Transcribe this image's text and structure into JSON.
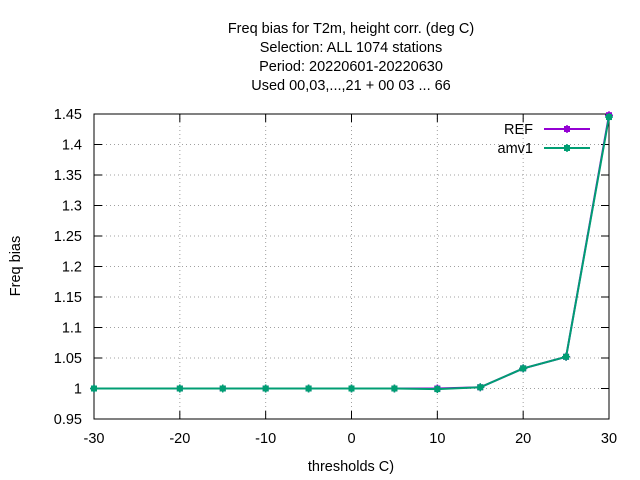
{
  "chart_data": {
    "type": "line",
    "title_lines": [
      "Freq bias  for T2m, height corr. (deg C)",
      "Selection: ALL   1074 stations",
      "Period: 20220601-20220630",
      "Used  00,03,...,21  + 00 03 ... 66"
    ],
    "xlabel": "thresholds C)",
    "ylabel": "Freq bias",
    "xlim": [
      -30,
      30
    ],
    "ylim": [
      0.95,
      1.45
    ],
    "xticks": [
      -30,
      -20,
      -10,
      0,
      10,
      20,
      30
    ],
    "yticks": [
      0.95,
      1,
      1.05,
      1.1,
      1.15,
      1.2,
      1.25,
      1.3,
      1.35,
      1.4,
      1.45
    ],
    "ytick_labels": [
      "0.95",
      "1",
      "1.05",
      "1.1",
      "1.15",
      "1.2",
      "1.25",
      "1.3",
      "1.35",
      "1.4",
      "1.45"
    ],
    "grid": true,
    "legend_position": "top-right",
    "x": [
      -30,
      -20,
      -15,
      -10,
      -5,
      0,
      5,
      10,
      15,
      20,
      25,
      30
    ],
    "series": [
      {
        "name": "REF",
        "color": "#9400d3",
        "values": [
          1.0,
          1.0,
          1.0,
          1.0,
          1.0,
          1.0,
          1.0,
          1.0,
          1.002,
          1.033,
          1.052,
          1.448
        ]
      },
      {
        "name": "amv1",
        "color": "#009e73",
        "values": [
          1.0,
          1.0,
          1.0,
          1.0,
          1.0,
          1.0,
          1.0,
          0.999,
          1.002,
          1.033,
          1.052,
          1.445
        ]
      }
    ]
  }
}
